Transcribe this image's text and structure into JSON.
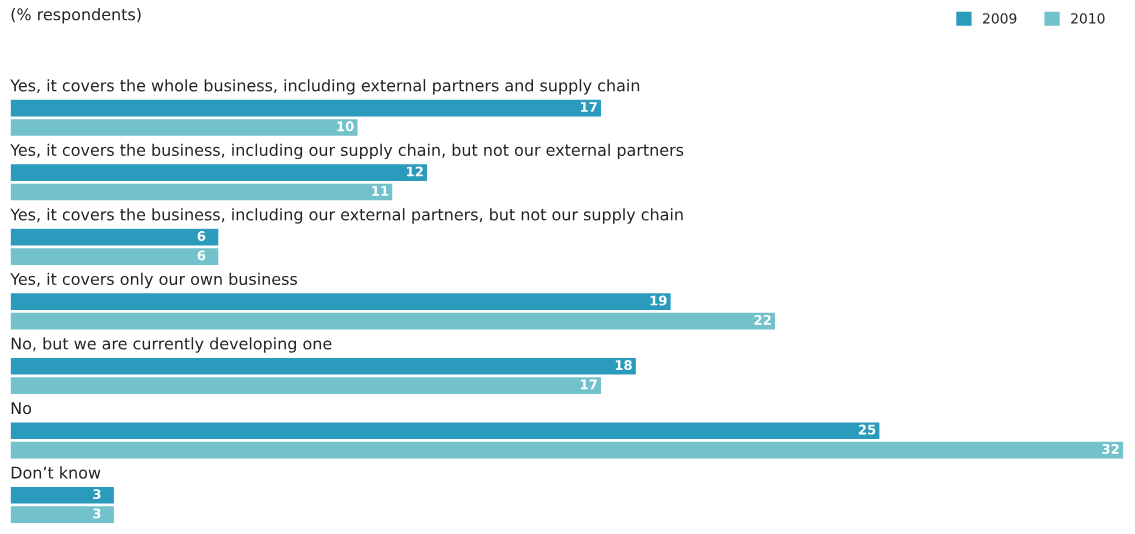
{
  "chart_data": {
    "type": "bar",
    "orientation": "horizontal",
    "subtitle": "(% respondents)",
    "categories": [
      "Yes, it covers the whole business, including external partners and supply chain",
      "Yes, it covers the business, including our supply chain, but not our external partners",
      "Yes, it covers the business, including our external partners, but not our supply chain",
      "Yes, it covers only our own business",
      "No, but we are currently developing one",
      "No",
      "Don’t know"
    ],
    "series": [
      {
        "name": "2009",
        "color": "#2a9bbd",
        "values": [
          17,
          12,
          6,
          19,
          18,
          25,
          3
        ]
      },
      {
        "name": "2010",
        "color": "#73c2cb",
        "values": [
          10,
          11,
          6,
          22,
          17,
          32,
          3
        ]
      }
    ],
    "data_labels": true,
    "legend": "top right"
  }
}
